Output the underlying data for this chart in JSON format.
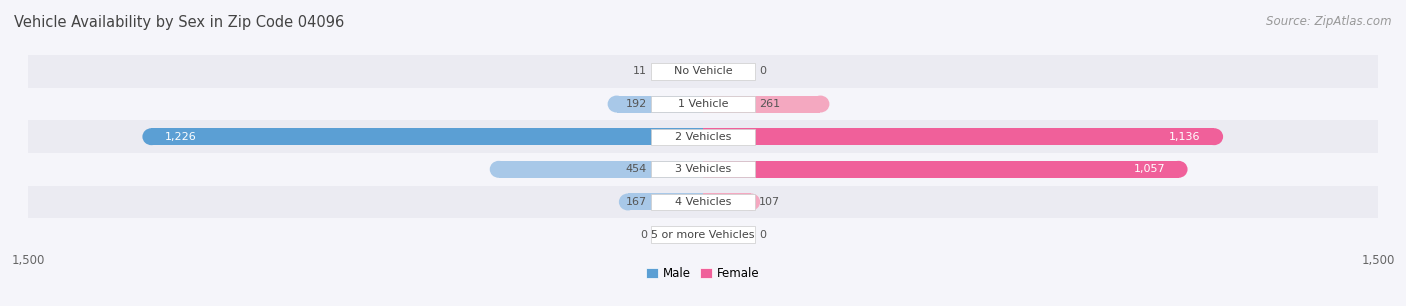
{
  "title": "Vehicle Availability by Sex in Zip Code 04096",
  "source": "Source: ZipAtlas.com",
  "categories": [
    "No Vehicle",
    "1 Vehicle",
    "2 Vehicles",
    "3 Vehicles",
    "4 Vehicles",
    "5 or more Vehicles"
  ],
  "male_values": [
    11,
    192,
    1226,
    454,
    167,
    0
  ],
  "female_values": [
    0,
    261,
    1136,
    1057,
    107,
    0
  ],
  "male_color_light": "#a8c8e8",
  "female_color_light": "#f4a8c0",
  "male_color_dark": "#5b9fd4",
  "female_color_dark": "#f0609a",
  "row_bg_even": "#ebebf2",
  "row_bg_odd": "#f5f5fa",
  "bg_color": "#f5f5fa",
  "xlim": 1500,
  "title_fontsize": 10.5,
  "source_fontsize": 8.5,
  "value_fontsize": 8,
  "cat_fontsize": 8,
  "legend_fontsize": 8.5
}
